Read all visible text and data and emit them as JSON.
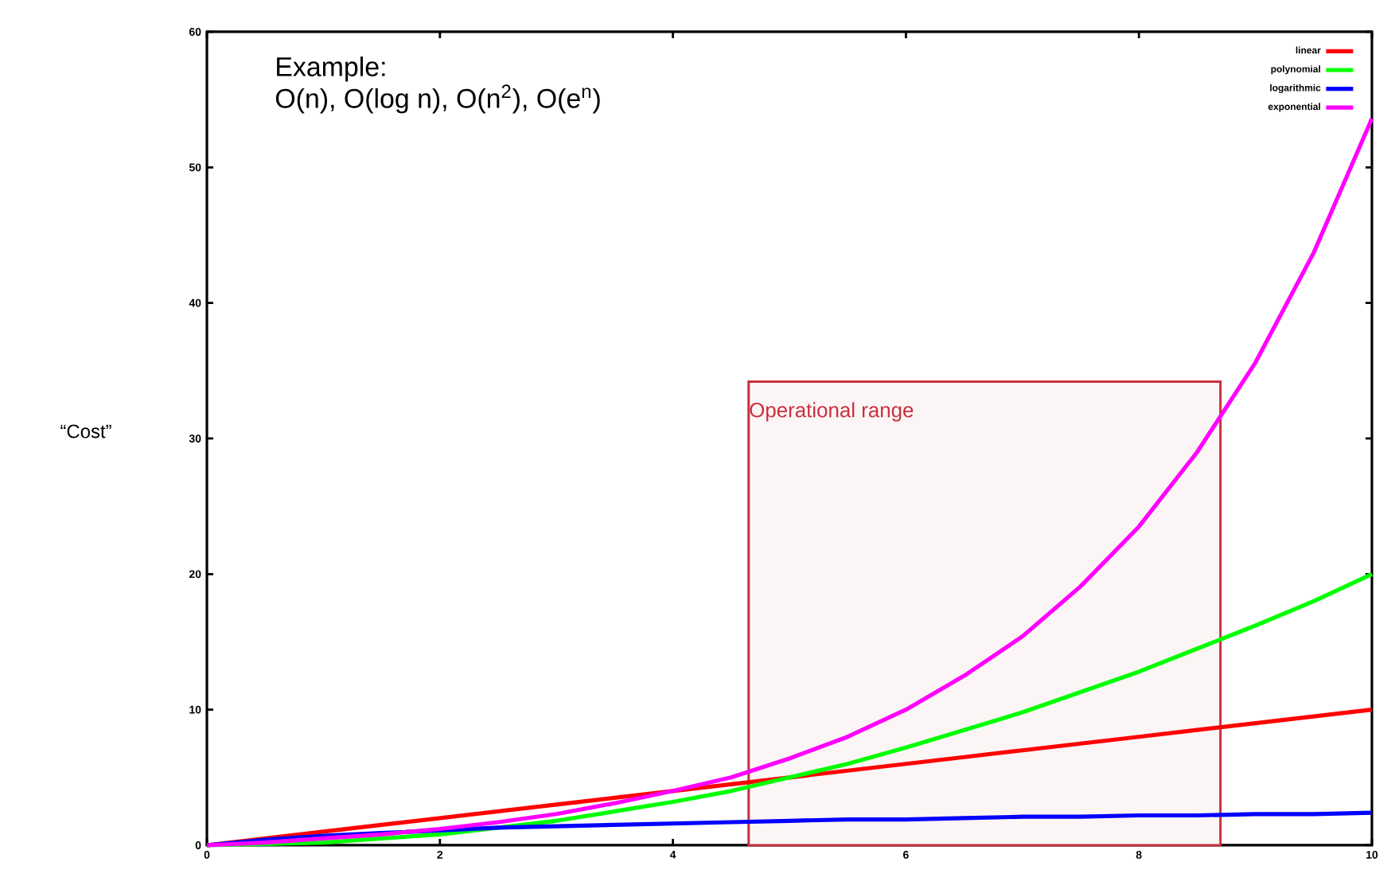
{
  "chart_data": {
    "type": "line",
    "ylabel": "“Cost”",
    "x": [
      0,
      0.5,
      1,
      1.5,
      2,
      2.5,
      3,
      3.5,
      4,
      4.5,
      5,
      5.5,
      6,
      6.5,
      7,
      7.5,
      8,
      8.5,
      9,
      9.5,
      10
    ],
    "series": [
      {
        "name": "linear",
        "color": "#ff0000",
        "values": [
          0,
          0.5,
          1,
          1.5,
          2,
          2.5,
          3,
          3.5,
          4,
          4.5,
          5,
          5.5,
          6,
          6.5,
          7,
          7.5,
          8,
          8.5,
          9,
          9.5,
          10
        ]
      },
      {
        "name": "polynomial",
        "color": "#00ff00",
        "values": [
          0,
          0.1,
          0.2,
          0.5,
          0.8,
          1.3,
          1.8,
          2.5,
          3.2,
          4,
          5,
          6,
          7.2,
          8.5,
          9.8,
          11.3,
          12.8,
          14.5,
          16.2,
          18,
          20
        ]
      },
      {
        "name": "logarithmic",
        "color": "#0000ff",
        "values": [
          0,
          0.4,
          0.7,
          0.9,
          1.1,
          1.3,
          1.4,
          1.5,
          1.6,
          1.7,
          1.8,
          1.9,
          1.9,
          2,
          2.1,
          2.1,
          2.2,
          2.2,
          2.3,
          2.3,
          2.4
        ]
      },
      {
        "name": "exponential",
        "color": "#ff00ff",
        "values": [
          0,
          0.2,
          0.5,
          0.8,
          1.2,
          1.7,
          2.3,
          3.1,
          4,
          5.0,
          6.4,
          8.0,
          10,
          12.5,
          15.4,
          19.1,
          23.5,
          29,
          35.6,
          43.7,
          53.6
        ]
      }
    ],
    "xlim": [
      0,
      10
    ],
    "ylim": [
      0,
      60
    ],
    "xticks": [
      0,
      2,
      4,
      6,
      8,
      10
    ],
    "yticks": [
      0,
      10,
      20,
      30,
      40,
      50,
      60
    ],
    "grid": false,
    "legend": "top right",
    "marker": "none",
    "line_style": "solid",
    "bands": [
      {
        "axis": "x",
        "from": 4.65,
        "to": 8.7,
        "label": "Operational range",
        "color": "#c8303f"
      }
    ],
    "annotations": [
      "Example:",
      "O(n), O(log n), O(n$^{2}$), O(e$^{n}$)"
    ]
  }
}
